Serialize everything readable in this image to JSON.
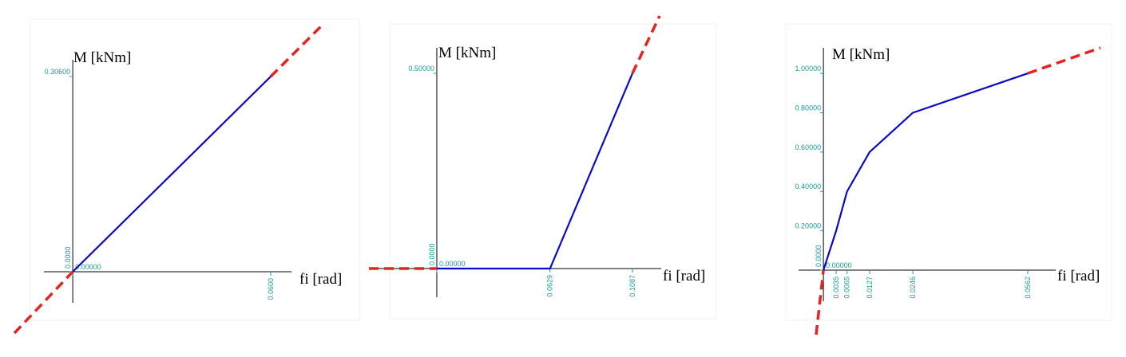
{
  "chart_data": [
    {
      "type": "line",
      "x_label": "fi [rad]",
      "y_label": "M [kNm]",
      "xlim": [
        -0.0177,
        0.0755
      ],
      "ylim": [
        -0.0962,
        0.386
      ],
      "xticks": [
        {
          "value": 0,
          "label": "0.0000"
        },
        {
          "value": 0.06,
          "label": "0.0600"
        }
      ],
      "yticks": [
        {
          "value": 0,
          "label": "0.00000"
        },
        {
          "value": 0.306,
          "label": "0.30600"
        }
      ],
      "series": [
        {
          "color": "#0a0ac8",
          "style": "solid",
          "x": [
            0,
            0.06
          ],
          "values": [
            0,
            0.306
          ]
        },
        {
          "color": "#e52420",
          "style": "dashed",
          "x": [
            -0.0177,
            0
          ],
          "values": [
            -0.0962,
            0
          ]
        },
        {
          "color": "#e52420",
          "style": "dashed",
          "x": [
            0.06,
            0.0755
          ],
          "values": [
            0.306,
            0.386
          ]
        }
      ]
    },
    {
      "type": "line",
      "x_label": "fi [rad]",
      "y_label": "M [kNm]",
      "xlim": [
        -0.0377,
        0.1238
      ],
      "ylim": [
        -0.0469,
        0.647
      ],
      "xticks": [
        {
          "value": 0,
          "label": "0.0000"
        },
        {
          "value": 0.0629,
          "label": "0.0629"
        },
        {
          "value": 0.1087,
          "label": "0.1087"
        }
      ],
      "yticks": [
        {
          "value": 0,
          "label": "0.00000"
        },
        {
          "value": 0.5,
          "label": "0.50000"
        }
      ],
      "series": [
        {
          "color": "#0a0ac8",
          "style": "solid",
          "x": [
            0,
            0.0629,
            0.1087
          ],
          "values": [
            0,
            0,
            0.5
          ]
        },
        {
          "color": "#e52420",
          "style": "dashed",
          "x": [
            -0.0377,
            0
          ],
          "values": [
            0,
            0
          ]
        },
        {
          "color": "#e52420",
          "style": "dashed",
          "x": [
            0.1087,
            0.1238
          ],
          "values": [
            0.5,
            0.647
          ]
        }
      ]
    },
    {
      "type": "line",
      "x_label": "fi [rad]",
      "y_label": "M [kNm]",
      "xlim": [
        -0.002,
        0.0762
      ],
      "ylim": [
        -0.328,
        1.13
      ],
      "xticks": [
        {
          "value": 0,
          "label": "0.0000"
        },
        {
          "value": 0.0035,
          "label": "0.0035"
        },
        {
          "value": 0.0065,
          "label": "0.0065"
        },
        {
          "value": 0.0127,
          "label": "0.0127"
        },
        {
          "value": 0.0246,
          "label": "0.0246"
        },
        {
          "value": 0.0562,
          "label": "0.0562"
        }
      ],
      "yticks": [
        {
          "value": 0,
          "label": "0.00000"
        },
        {
          "value": 0.2,
          "label": "0.20000"
        },
        {
          "value": 0.4,
          "label": "0.40000"
        },
        {
          "value": 0.6,
          "label": "0.60000"
        },
        {
          "value": 0.8,
          "label": "0.80000"
        },
        {
          "value": 1,
          "label": "1.00000"
        }
      ],
      "series": [
        {
          "color": "#0a0ac8",
          "style": "solid",
          "x": [
            0,
            0.0035,
            0.0065,
            0.0127,
            0.0246,
            0.0562
          ],
          "values": [
            0,
            0.2,
            0.4,
            0.6,
            0.8,
            1
          ]
        },
        {
          "color": "#e52420",
          "style": "dashed",
          "x": [
            -0.002,
            0
          ],
          "values": [
            -0.328,
            0
          ]
        },
        {
          "color": "#e52420",
          "style": "dashed",
          "x": [
            0.0562,
            0.0762
          ],
          "values": [
            1,
            1.13
          ]
        }
      ]
    }
  ]
}
